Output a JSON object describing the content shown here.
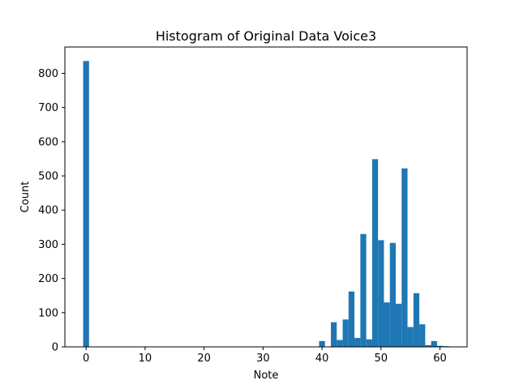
{
  "chart_data": {
    "type": "bar",
    "title": "Histogram of Original Data Voice3",
    "xlabel": "Note",
    "ylabel": "Count",
    "xlim": [
      -3.1,
      65.1
    ],
    "ylim": [
      0,
      877
    ],
    "xticks": [
      0,
      10,
      20,
      30,
      40,
      50,
      60
    ],
    "yticks": [
      0,
      100,
      200,
      300,
      400,
      500,
      600,
      700,
      800
    ],
    "bar_color": "#1f77b4",
    "grid": false,
    "bin_width": 1.0,
    "bins": [
      {
        "x": 0,
        "count": 836
      },
      {
        "x": 40,
        "count": 17
      },
      {
        "x": 42,
        "count": 72
      },
      {
        "x": 43,
        "count": 20
      },
      {
        "x": 44,
        "count": 80
      },
      {
        "x": 45,
        "count": 162
      },
      {
        "x": 46,
        "count": 26
      },
      {
        "x": 47,
        "count": 330
      },
      {
        "x": 48,
        "count": 22
      },
      {
        "x": 49,
        "count": 549
      },
      {
        "x": 50,
        "count": 312
      },
      {
        "x": 51,
        "count": 130
      },
      {
        "x": 52,
        "count": 304
      },
      {
        "x": 53,
        "count": 126
      },
      {
        "x": 54,
        "count": 522
      },
      {
        "x": 55,
        "count": 58
      },
      {
        "x": 56,
        "count": 157
      },
      {
        "x": 57,
        "count": 66
      },
      {
        "x": 58,
        "count": 5
      },
      {
        "x": 59,
        "count": 17
      },
      {
        "x": 60,
        "count": 3
      },
      {
        "x": 61,
        "count": 2
      }
    ]
  }
}
